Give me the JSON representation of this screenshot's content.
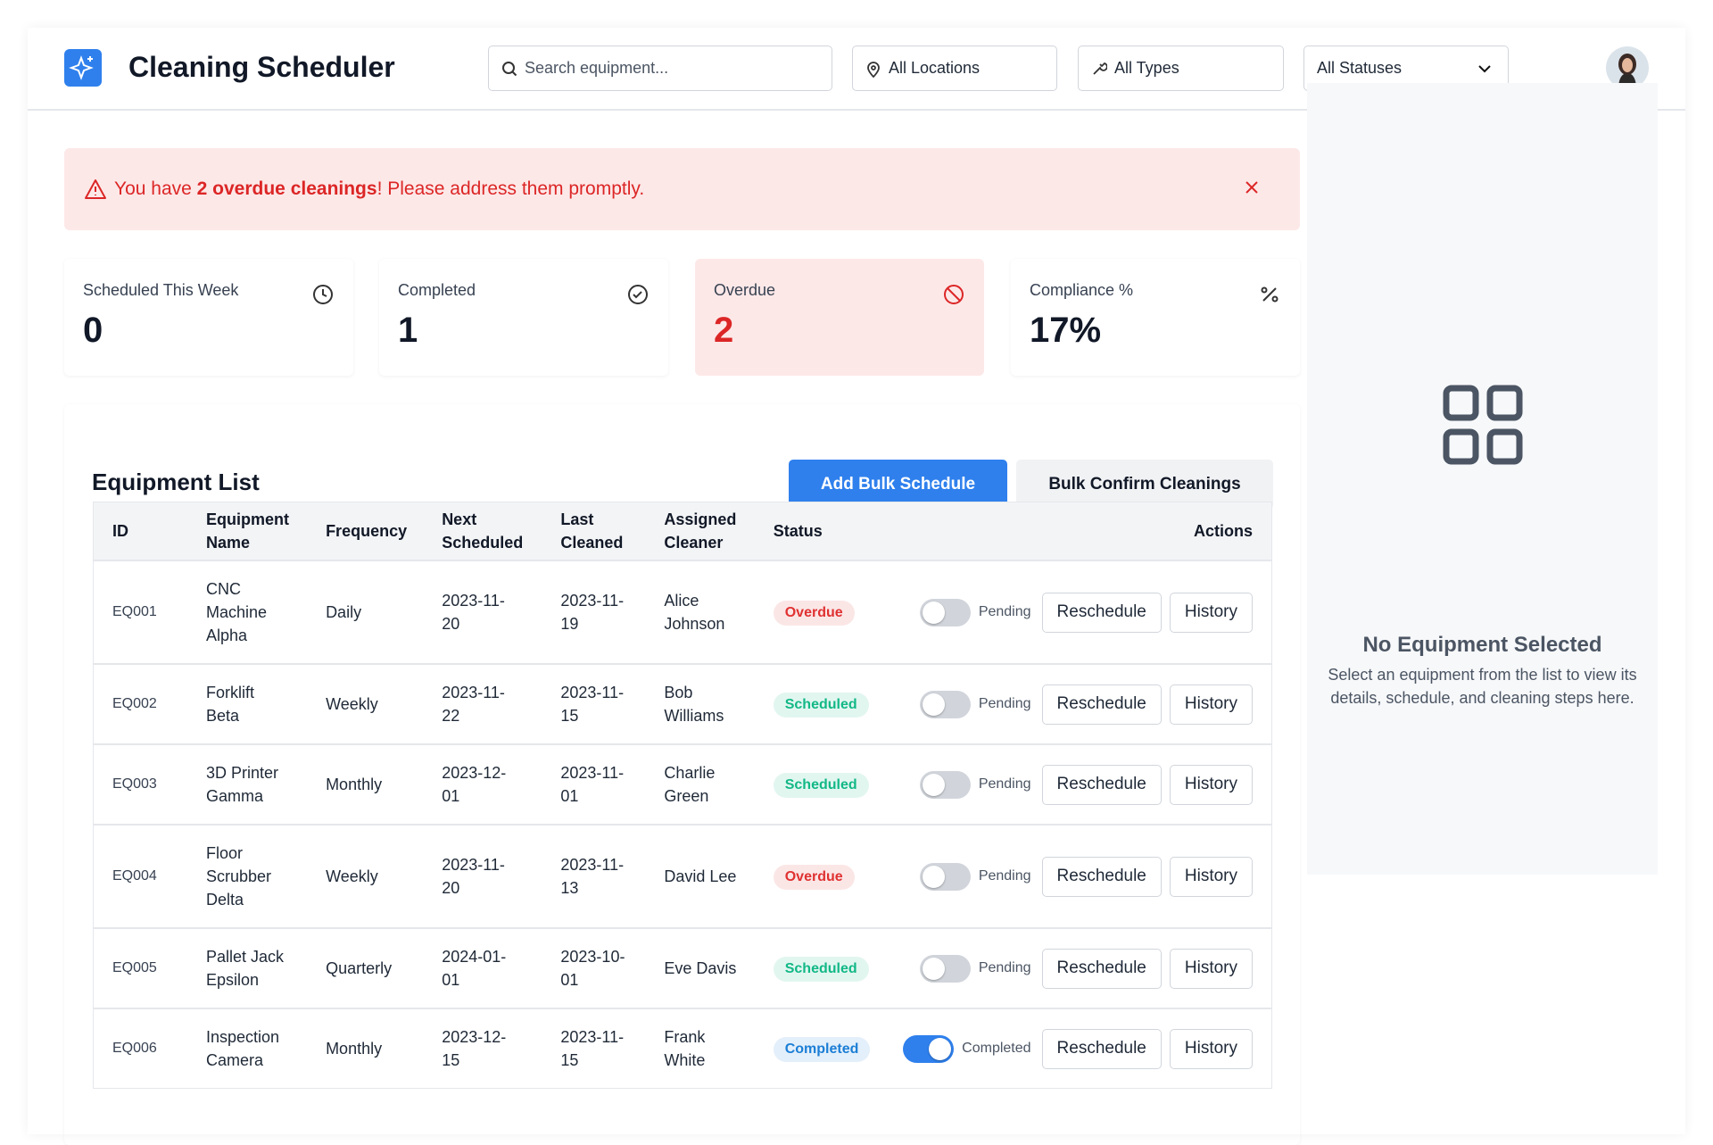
{
  "header": {
    "title": "Cleaning Scheduler",
    "search_placeholder": "Search equipment...",
    "filters": [
      "All Locations",
      "All Types",
      "All Statuses"
    ]
  },
  "alert": {
    "before": "You have",
    "bold": "2 overdue cleanings",
    "after": "! Please address them promptly."
  },
  "stats": [
    {
      "label": "Scheduled This Week",
      "value": 0,
      "highlight": false
    },
    {
      "label": "Completed",
      "value": 1,
      "highlight": false
    },
    {
      "label": "Overdue",
      "value": 2,
      "highlight": true
    },
    {
      "label": "Compliance %",
      "value": "17%",
      "highlight": false
    }
  ],
  "equipment": {
    "title": "Equipment List",
    "buttons": [
      "Add Bulk Schedule",
      "Bulk Confirm Cleanings"
    ]
  },
  "table": {
    "columns": [
      "ID",
      "Equipment Name",
      "Frequency",
      "Next Scheduled",
      "Last Cleaned",
      "Assigned Cleaner",
      "Status",
      "Actions"
    ],
    "action_buttons": [
      "Reschedule",
      "History"
    ],
    "status_colors": {
      "Overdue": "#e03131",
      "Scheduled": "#12b886",
      "Completed": "#1c7ed6"
    },
    "rows": [
      [
        "EQ001",
        "CNC Machine Alpha",
        "Daily",
        "2023-11-20",
        "2023-11-19",
        "Alice Johnson",
        "Overdue",
        "Pending",
        false
      ],
      [
        "EQ002",
        "Forklift Beta",
        "Weekly",
        "2023-11-22",
        "2023-11-15",
        "Bob Williams",
        "Scheduled",
        "Pending",
        false
      ],
      [
        "EQ003",
        "3D Printer Gamma",
        "Monthly",
        "2023-12-01",
        "2023-11-01",
        "Charlie Green",
        "Scheduled",
        "Pending",
        false
      ],
      [
        "EQ004",
        "Floor Scrubber Delta",
        "Weekly",
        "2023-11-20",
        "2023-11-13",
        "David Lee",
        "Overdue",
        "Pending",
        false
      ],
      [
        "EQ005",
        "Pallet Jack Epsilon",
        "Quarterly",
        "2024-01-01",
        "2023-10-01",
        "Eve Davis",
        "Scheduled",
        "Pending",
        false
      ],
      [
        "EQ006",
        "Inspection Camera",
        "Monthly",
        "2023-12-15",
        "2023-11-15",
        "Frank White",
        "Completed",
        "Completed",
        true
      ]
    ]
  },
  "panel": {
    "title": "No Equipment Selected",
    "text": "Select an equipment from the list to view its details, schedule, and cleaning steps here."
  }
}
